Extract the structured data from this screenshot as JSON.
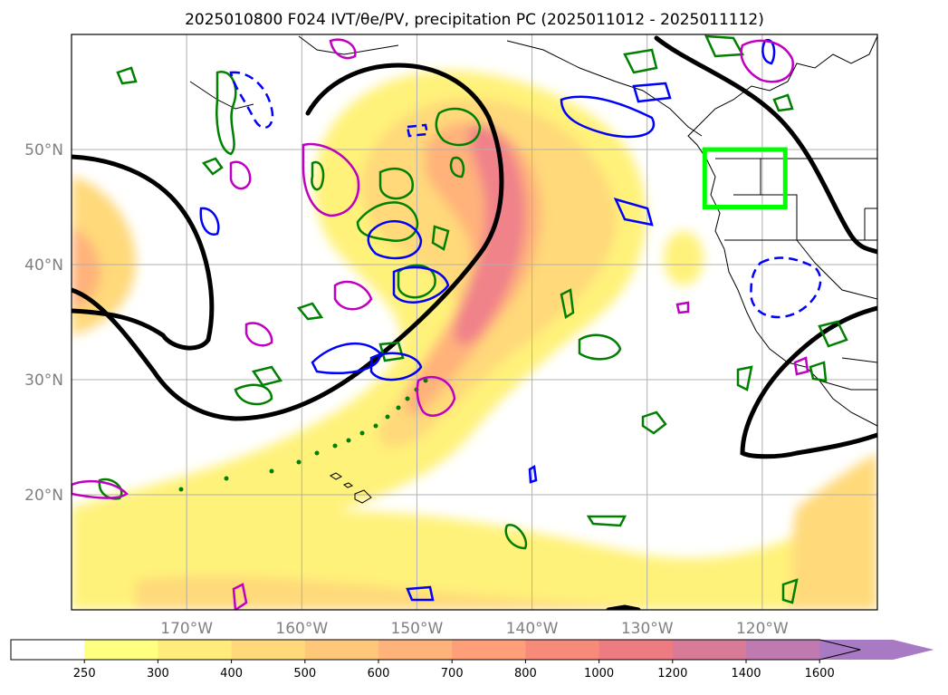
{
  "title": "2025010800 F024 IVT/θe/PV, precipitation PC (2025011012 - 2025011112)",
  "map": {
    "lat_labels": [
      {
        "lat": 50,
        "label": "50°N"
      },
      {
        "lat": 40,
        "label": "40°N"
      },
      {
        "lat": 30,
        "label": "30°N"
      },
      {
        "lat": 20,
        "label": "20°N"
      }
    ],
    "lon_labels": [
      {
        "lon": -170,
        "label": "170°W"
      },
      {
        "lon": -160,
        "label": "160°W"
      },
      {
        "lon": -150,
        "label": "150°W"
      },
      {
        "lon": -140,
        "label": "140°W"
      },
      {
        "lon": -130,
        "label": "130°W"
      },
      {
        "lon": -120,
        "label": "120°W"
      }
    ],
    "extent": {
      "lon_min": -180,
      "lon_max": -110,
      "lat_min": 10,
      "lat_max": 60
    },
    "region_box": {
      "lon_min": -125,
      "lon_max": -118,
      "lat_min": 45,
      "lat_max": 50,
      "color": "#00ff00"
    },
    "colors": {
      "ivt_line": "#000000",
      "pv_pos": "#0000ff",
      "pv_neg": "#0000ff",
      "theta_e": "#008000",
      "precip_pc": "#c000c0",
      "coast": "#000000",
      "grid": "#b0b0b0"
    }
  },
  "colorbar": {
    "levels": [
      250,
      300,
      400,
      500,
      600,
      700,
      800,
      1000,
      1200,
      1400,
      1600
    ],
    "labels": [
      "250",
      "300",
      "400",
      "500",
      "600",
      "700",
      "800",
      "1000",
      "1200",
      "1400",
      "1600"
    ],
    "colors": [
      "#ffff80",
      "#ffec7a",
      "#ffd97a",
      "#ffc77a",
      "#ffb27a",
      "#ff9f7a",
      "#f88a7a",
      "#ee7a82",
      "#d97a96",
      "#c07ab0",
      "#a87ac4"
    ],
    "under_color": "#ffffff",
    "extend": "max"
  }
}
